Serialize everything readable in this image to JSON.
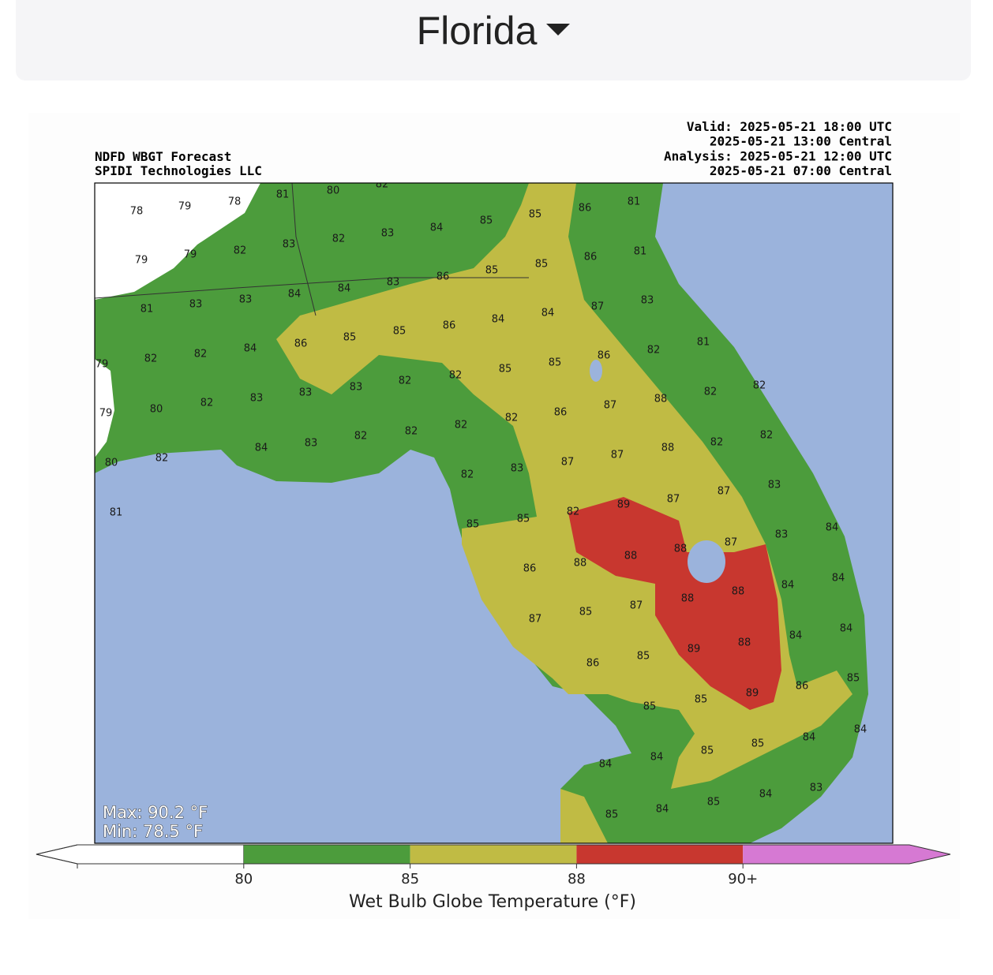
{
  "header": {
    "title": "Florida"
  },
  "map": {
    "title_left": [
      "NDFD WBGT Forecast",
      "SPIDI Technologies LLC"
    ],
    "title_right": [
      "Valid: 2025-05-21 18:00 UTC",
      "2025-05-21 13:00 Central",
      "Analysis: 2025-05-21 12:00 UTC",
      "2025-05-21 07:00 Central"
    ],
    "stats": [
      "Max: 90.2 °F",
      "Min: 78.5 °F"
    ],
    "labels": [
      78,
      79,
      78,
      81,
      80,
      82,
      81,
      86,
      85,
      85,
      84,
      83,
      82,
      83,
      82,
      79,
      79,
      81,
      86,
      85,
      85,
      86,
      83,
      84,
      84,
      83,
      83,
      81,
      83,
      87,
      84,
      84,
      86,
      85,
      85,
      86,
      84,
      82,
      82,
      79,
      81,
      82,
      86,
      85,
      85,
      82,
      82,
      83,
      83,
      83,
      82,
      80,
      79,
      82,
      82,
      88,
      87,
      86,
      82,
      82,
      82,
      82,
      83,
      84,
      82,
      80,
      82,
      82,
      88,
      87,
      87,
      83,
      82,
      83,
      87,
      87,
      89,
      82,
      85,
      85,
      81,
      84,
      83,
      87,
      88,
      88,
      88,
      86,
      84,
      84,
      88,
      88,
      87,
      85,
      87,
      84,
      84,
      88,
      89,
      85,
      86,
      85,
      86,
      89,
      85,
      85,
      84,
      84,
      85,
      85,
      84,
      84,
      83,
      84,
      85,
      84,
      85
    ]
  },
  "colorbar": {
    "colors": [
      "#ffffff",
      "#4c9c3c",
      "#c0bb44",
      "#c8372f",
      "#d679d3"
    ],
    "ticks": [
      80,
      85,
      88,
      {
        "value": 90,
        "label": "90+"
      }
    ],
    "label": "Wet Bulb Globe Temperature (°F)"
  }
}
